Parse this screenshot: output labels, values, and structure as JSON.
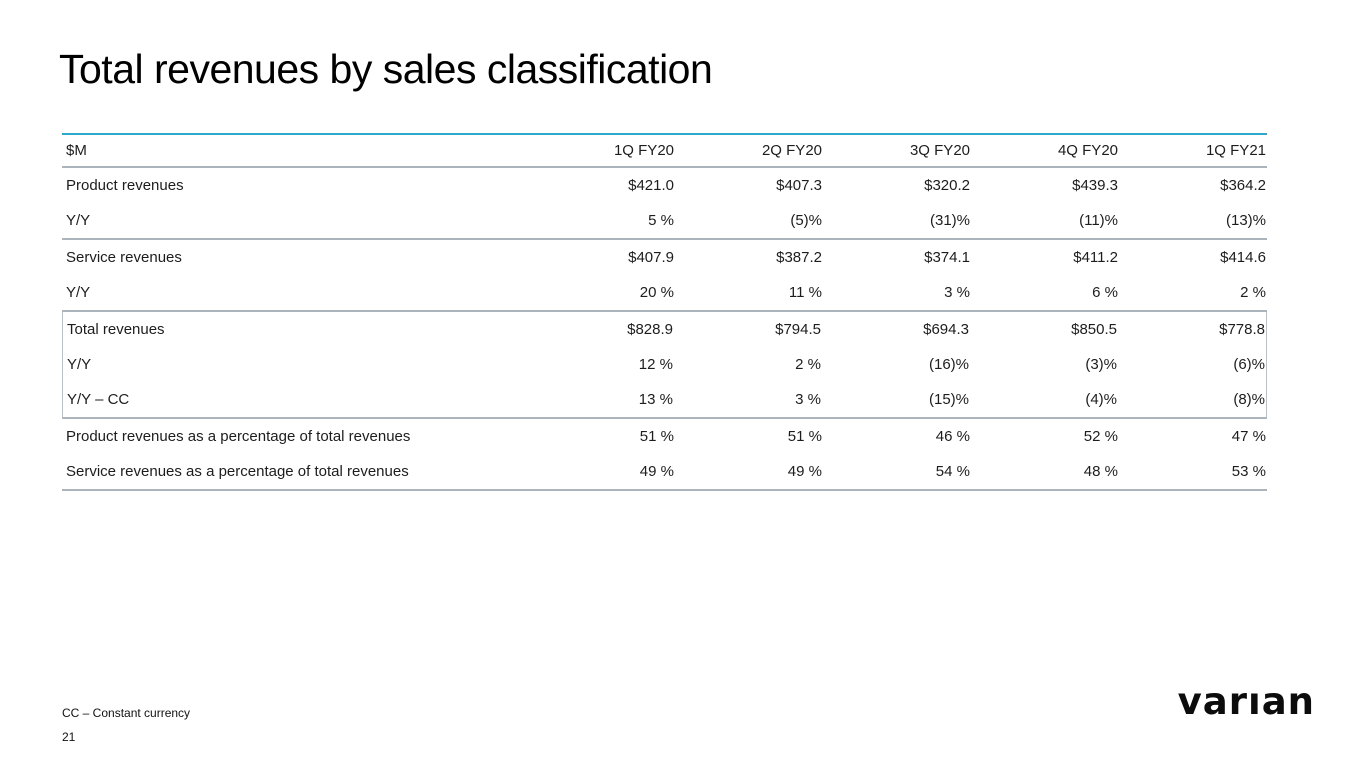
{
  "slide": {
    "title": "Total revenues by sales classification",
    "footnote": "CC – Constant currency",
    "page_number": "21",
    "logo_text": "varıan"
  },
  "table": {
    "unit_label": "$M",
    "columns": [
      "1Q FY20",
      "2Q FY20",
      "3Q FY20",
      "4Q FY20",
      "1Q FY21"
    ],
    "sections": [
      {
        "rows": [
          {
            "label": "Product revenues",
            "values": [
              "$421.0",
              "$407.3",
              "$320.2",
              "$439.3",
              "$364.2"
            ]
          },
          {
            "label": "Y/Y",
            "values": [
              "5 %",
              "(5)%",
              "(31)%",
              "(11)%",
              "(13)%"
            ]
          }
        ]
      },
      {
        "rows": [
          {
            "label": "Service revenues",
            "values": [
              "$407.9",
              "$387.2",
              "$374.1",
              "$411.2",
              "$414.6"
            ]
          },
          {
            "label": "Y/Y",
            "values": [
              "20 %",
              "11 %",
              "3 %",
              "6 %",
              "2 %"
            ]
          }
        ]
      },
      {
        "highlight": true,
        "rows": [
          {
            "label": "Total revenues",
            "values": [
              "$828.9",
              "$794.5",
              "$694.3",
              "$850.5",
              "$778.8"
            ]
          },
          {
            "label": "Y/Y",
            "values": [
              "12 %",
              "2 %",
              "(16)%",
              "(3)%",
              "(6)%"
            ]
          },
          {
            "label": "Y/Y – CC",
            "values": [
              "13 %",
              "3 %",
              "(15)%",
              "(4)%",
              "(8)%"
            ]
          }
        ]
      },
      {
        "rows": [
          {
            "label": "Product revenues as a percentage of total revenues",
            "values": [
              "51 %",
              "51 %",
              "46 %",
              "52 %",
              "47 %"
            ]
          },
          {
            "label": "Service revenues as a percentage of total revenues",
            "values": [
              "49 %",
              "49 %",
              "54 %",
              "48 %",
              "53 %"
            ]
          }
        ]
      }
    ]
  },
  "colors": {
    "accent_line": "#2fa9cb",
    "separator_line": "#a9b4bc",
    "highlight_border": "#b6c2ca",
    "text": "#1d1d1d",
    "background": "#ffffff"
  }
}
